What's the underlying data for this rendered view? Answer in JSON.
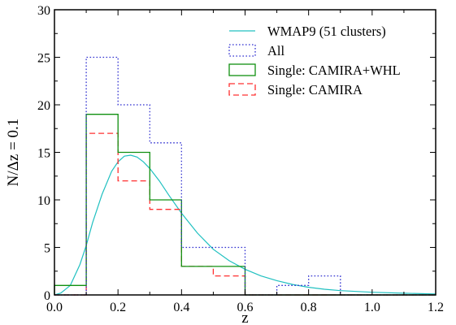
{
  "chart_data": {
    "type": "histogram",
    "xlabel": "z",
    "ylabel": "N/Δz = 0.1",
    "xlim": [
      0.0,
      1.2
    ],
    "ylim": [
      0,
      30
    ],
    "xticks": [
      0.0,
      0.2,
      0.4,
      0.6,
      0.8,
      1.0,
      1.2
    ],
    "xtick_labels": [
      "0.0",
      "0.2",
      "0.4",
      "0.6",
      "0.8",
      "1.0",
      "1.2"
    ],
    "yticks": [
      0,
      5,
      10,
      15,
      20,
      25,
      30
    ],
    "ytick_labels": [
      "0",
      "5",
      "10",
      "15",
      "20",
      "25",
      "30"
    ],
    "legend_position": "top-right",
    "bin_edges": [
      0.0,
      0.1,
      0.2,
      0.3,
      0.4,
      0.5,
      0.6,
      0.7,
      0.8,
      0.9,
      1.0,
      1.1,
      1.2
    ],
    "series": [
      {
        "name": "WMAP9 (51 clusters)",
        "kind": "curve",
        "color": "#20c0c0",
        "style": "solid",
        "x": [
          0.0,
          0.02,
          0.05,
          0.08,
          0.1,
          0.12,
          0.15,
          0.18,
          0.2,
          0.22,
          0.24,
          0.26,
          0.28,
          0.3,
          0.33,
          0.36,
          0.4,
          0.45,
          0.5,
          0.55,
          0.6,
          0.65,
          0.7,
          0.75,
          0.8,
          0.85,
          0.9,
          1.0,
          1.1,
          1.2
        ],
        "y": [
          0.0,
          0.2,
          1.0,
          3.2,
          5.2,
          7.6,
          10.6,
          13.0,
          14.0,
          14.6,
          14.7,
          14.5,
          14.0,
          13.3,
          12.0,
          10.5,
          8.6,
          6.5,
          4.8,
          3.6,
          2.7,
          2.0,
          1.5,
          1.1,
          0.8,
          0.6,
          0.45,
          0.28,
          0.18,
          0.1
        ]
      },
      {
        "name": "All",
        "kind": "step",
        "color": "#3030d0",
        "style": "dotted",
        "counts": [
          0,
          25,
          20,
          16,
          5,
          5,
          0,
          1,
          2,
          0,
          0,
          0
        ]
      },
      {
        "name": "Single: CAMIRA+WHL",
        "kind": "step",
        "color": "#109010",
        "style": "solid",
        "counts": [
          1,
          19,
          15,
          10,
          3,
          3,
          0,
          0,
          0,
          0,
          0,
          0
        ]
      },
      {
        "name": "Single: CAMIRA",
        "kind": "step",
        "color": "#ff3030",
        "style": "dashed",
        "counts": [
          0,
          17,
          12,
          9,
          3,
          2,
          0,
          0,
          0,
          0,
          0,
          0
        ]
      }
    ]
  }
}
